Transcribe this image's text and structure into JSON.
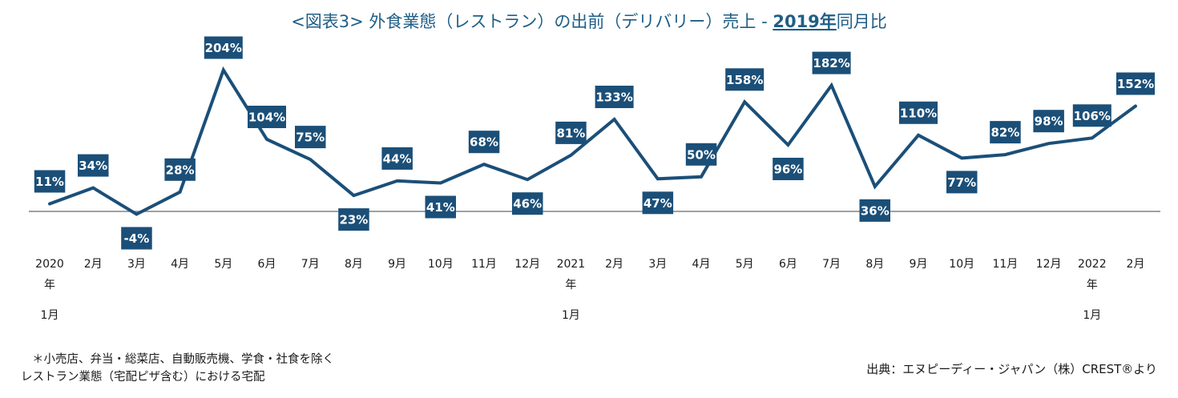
{
  "chart_data": {
    "type": "line",
    "title": {
      "prefix": "<図表3> 外食業態（レストラン）の出前（デリバリー）売上 - ",
      "year": "2019年",
      "suffix": "同月比"
    },
    "x": [
      "2020年1月",
      "2月",
      "3月",
      "4月",
      "5月",
      "6月",
      "7月",
      "8月",
      "9月",
      "10月",
      "11月",
      "12月",
      "2021年1月",
      "2月",
      "3月",
      "4月",
      "5月",
      "6月",
      "7月",
      "8月",
      "9月",
      "10月",
      "11月",
      "12月",
      "2022年1月",
      "2月"
    ],
    "tick_labels": [
      [
        "2020",
        "年",
        "1月"
      ],
      [
        "2月"
      ],
      [
        "3月"
      ],
      [
        "4月"
      ],
      [
        "5月"
      ],
      [
        "6月"
      ],
      [
        "7月"
      ],
      [
        "8月"
      ],
      [
        "9月"
      ],
      [
        "10月"
      ],
      [
        "11月"
      ],
      [
        "12月"
      ],
      [
        "2021",
        "年",
        "1月"
      ],
      [
        "2月"
      ],
      [
        "3月"
      ],
      [
        "4月"
      ],
      [
        "5月"
      ],
      [
        "6月"
      ],
      [
        "7月"
      ],
      [
        "8月"
      ],
      [
        "9月"
      ],
      [
        "10月"
      ],
      [
        "11月"
      ],
      [
        "12月"
      ],
      [
        "2022",
        "年",
        "1月"
      ],
      [
        "2月"
      ]
    ],
    "values": [
      11,
      34,
      -4,
      28,
      204,
      104,
      75,
      23,
      44,
      41,
      68,
      46,
      81,
      133,
      47,
      50,
      158,
      96,
      182,
      36,
      110,
      77,
      82,
      98,
      106,
      152
    ],
    "data_labels": [
      "11%",
      "34%",
      "-4%",
      "28%",
      "204%",
      "104%",
      "75%",
      "23%",
      "44%",
      "41%",
      "68%",
      "46%",
      "81%",
      "133%",
      "47%",
      "50%",
      "158%",
      "96%",
      "182%",
      "36%",
      "110%",
      "77%",
      "82%",
      "98%",
      "106%",
      "152%"
    ],
    "unit": "%",
    "baseline": 0,
    "ylim": [
      -10,
      210
    ],
    "grid": false,
    "line_color": "#1b4f78",
    "label_box_color": "#1b4f78",
    "axis_color": "#808080"
  },
  "footnote": {
    "line1": "＊小売店、弁当・総菜店、自動販売機、学食・社食を除く",
    "line2": "レストラン業態（宅配ピザ含む）における宅配"
  },
  "source": "出典：エヌピーディー・ジャパン（株）CREST®より"
}
